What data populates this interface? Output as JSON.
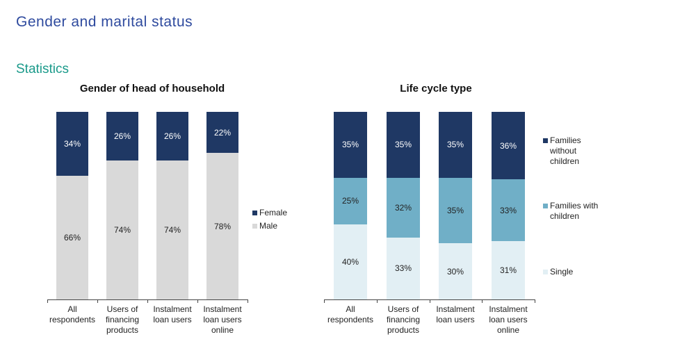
{
  "page_title": "Gender and marital status",
  "section_title": "Statistics",
  "chart_data": [
    {
      "type": "stacked-bar",
      "title": "Gender of head of household",
      "categories": [
        "All respondents",
        "Users of financing products",
        "Instalment loan users",
        "Instalment loan users online"
      ],
      "series": [
        {
          "name": "Male",
          "color": "#d9d9d9",
          "values": [
            66,
            74,
            74,
            78
          ],
          "value_labels": [
            "66%",
            "74%",
            "74%",
            "78%"
          ]
        },
        {
          "name": "Female",
          "color": "#1f3864",
          "values": [
            34,
            26,
            26,
            22
          ],
          "value_labels": [
            "34%",
            "26%",
            "26%",
            "22%"
          ]
        }
      ],
      "ylim": [
        0,
        100
      ],
      "legend": "right"
    },
    {
      "type": "stacked-bar",
      "title": "Life cycle type",
      "categories": [
        "All respondents",
        "Users of financing products",
        "Instalment loan users",
        "Instalment loan users online"
      ],
      "series": [
        {
          "name": "Single",
          "color": "#e2eff4",
          "values": [
            40,
            33,
            30,
            31
          ],
          "value_labels": [
            "40%",
            "33%",
            "30%",
            "31%"
          ]
        },
        {
          "name": "Families with children",
          "color": "#70afc7",
          "values": [
            25,
            32,
            35,
            33
          ],
          "value_labels": [
            "25%",
            "32%",
            "35%",
            "33%"
          ]
        },
        {
          "name": "Families without children",
          "color": "#1f3864",
          "values": [
            35,
            35,
            35,
            36
          ],
          "value_labels": [
            "35%",
            "35%",
            "35%",
            "36%"
          ]
        }
      ],
      "ylim": [
        0,
        100
      ],
      "legend": "right"
    }
  ]
}
